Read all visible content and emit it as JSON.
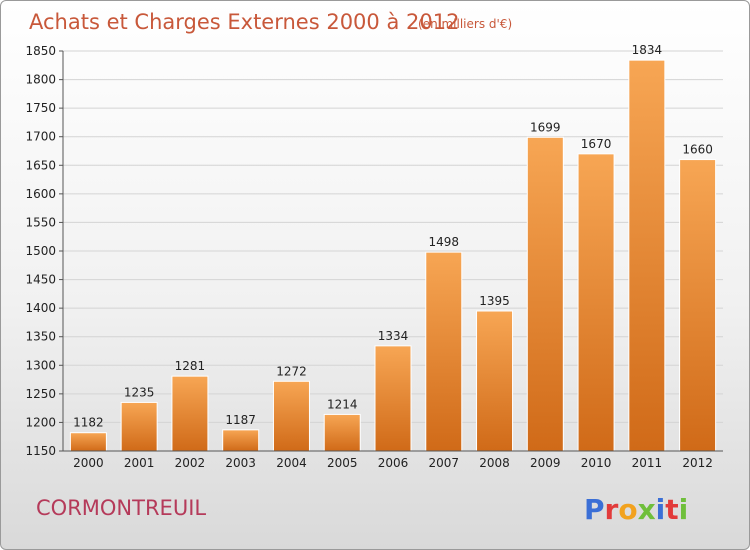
{
  "chart_data": {
    "type": "bar",
    "title": "Achats et Charges Externes 2000 à 2012",
    "subtitle": "(en milliers d'€)",
    "categories": [
      "2000",
      "2001",
      "2002",
      "2003",
      "2004",
      "2005",
      "2006",
      "2007",
      "2008",
      "2009",
      "2010",
      "2011",
      "2012"
    ],
    "values": [
      1182,
      1235,
      1281,
      1187,
      1272,
      1214,
      1334,
      1498,
      1395,
      1699,
      1670,
      1834,
      1660
    ],
    "ylim": [
      1150,
      1850
    ],
    "yticks": [
      1150,
      1200,
      1250,
      1300,
      1350,
      1400,
      1450,
      1500,
      1550,
      1600,
      1650,
      1700,
      1750,
      1800,
      1850
    ],
    "xlabel": "",
    "ylabel": "",
    "grid": true,
    "bar_color_top": "#f7a654",
    "bar_color_bottom": "#d06a18"
  },
  "footer": {
    "commune": "CORMONTREUIL",
    "logo_letters": [
      "P",
      "r",
      "o",
      "x",
      "i",
      "t",
      "i"
    ],
    "logo_colors": [
      "#3b6fd6",
      "#e23b3b",
      "#f2a21e",
      "#6fbf3b",
      "#3b6fd6",
      "#e23b3b",
      "#6fbf3b"
    ]
  }
}
